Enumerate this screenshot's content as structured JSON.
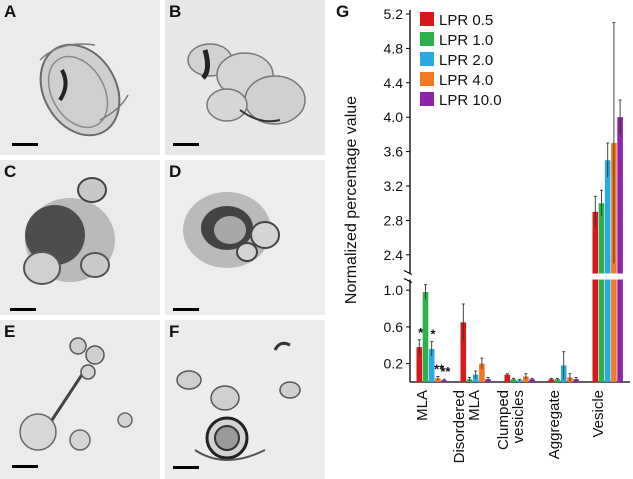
{
  "panels": [
    {
      "letter": "A",
      "icon": "micrograph-multilamellar-aggregate"
    },
    {
      "letter": "B",
      "icon": "micrograph-multilamellar-aggregate"
    },
    {
      "letter": "C",
      "icon": "micrograph-disordered-mla"
    },
    {
      "letter": "D",
      "icon": "micrograph-disordered-mla"
    },
    {
      "letter": "E",
      "icon": "micrograph-vesicles"
    },
    {
      "letter": "F",
      "icon": "micrograph-vesicles"
    }
  ],
  "chart_letter": "G",
  "chart_data": {
    "type": "bar",
    "title": "",
    "xlabel": "",
    "ylabel": "Normalized percentage value",
    "categories": [
      "MLA",
      "Disordered MLA",
      "Clumped vesicles",
      "Aggregate",
      "Vesicle"
    ],
    "category_label_lines": [
      [
        "MLA"
      ],
      [
        "Disordered",
        "MLA"
      ],
      [
        "Clumped",
        "vesicles"
      ],
      [
        "Aggregate"
      ],
      [
        "Vesicle"
      ]
    ],
    "series": [
      {
        "name": "LPR 0.5",
        "color": "#d7191c",
        "values": [
          0.38,
          0.65,
          0.08,
          0.03,
          2.9
        ],
        "errors": [
          0.08,
          0.2,
          0.01,
          0.01,
          0.18
        ]
      },
      {
        "name": "LPR 1.0",
        "color": "#2bb24c",
        "values": [
          0.98,
          0.03,
          0.03,
          0.03,
          3.0
        ],
        "errors": [
          0.08,
          0.02,
          0.01,
          0.01,
          0.15
        ]
      },
      {
        "name": "LPR 2.0",
        "color": "#29abe2",
        "values": [
          0.36,
          0.08,
          0.02,
          0.18,
          3.5
        ],
        "errors": [
          0.08,
          0.04,
          0.01,
          0.15,
          0.2
        ]
      },
      {
        "name": "LPR 4.0",
        "color": "#f47920",
        "values": [
          0.04,
          0.2,
          0.06,
          0.05,
          3.7
        ],
        "errors": [
          0.02,
          0.06,
          0.03,
          0.04,
          1.4
        ]
      },
      {
        "name": "LPR 10.0",
        "color": "#8e24aa",
        "values": [
          0.02,
          0.03,
          0.03,
          0.03,
          4.0
        ],
        "errors": [
          0.01,
          0.02,
          0.01,
          0.02,
          0.2
        ]
      }
    ],
    "y_axis_break": {
      "lower_range": [
        0,
        1.1
      ],
      "upper_range": [
        2.2,
        5.2
      ]
    },
    "yticks_lower": [
      "0.2",
      "0.6",
      "1.0"
    ],
    "yticks_upper": [
      "2.4",
      "2.8",
      "3.2",
      "3.6",
      "4.0",
      "4.4",
      "4.8",
      "5.2"
    ],
    "annotations": [
      {
        "category": "MLA",
        "series": "LPR 0.5",
        "text": "*"
      },
      {
        "category": "MLA",
        "series": "LPR 2.0",
        "text": "*"
      },
      {
        "category": "MLA",
        "series": "LPR 4.0",
        "text": "**"
      },
      {
        "category": "MLA",
        "series": "LPR 10.0",
        "text": "**"
      }
    ],
    "legend_position": "top-left",
    "grid": false
  }
}
